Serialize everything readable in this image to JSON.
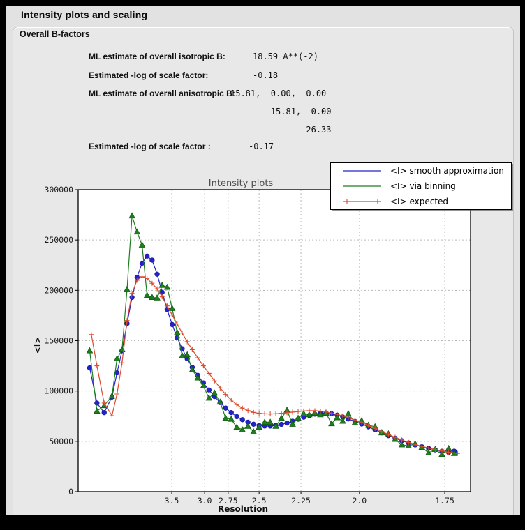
{
  "window": {
    "title": "Intensity plots and scaling"
  },
  "bfactors": {
    "heading": "Overall B-factors",
    "rows": [
      {
        "label": "ML estimate of overall isotropic B:",
        "value": "18.59 A**(-2)"
      },
      {
        "label": "Estimated -log of scale factor:",
        "value": "-0.18"
      },
      {
        "label": "ML estimate of overall anisotropic B:",
        "value": "15.81,  0.00,  0.00"
      },
      {
        "label": "",
        "value": "        15.81, -0.00"
      },
      {
        "label": "",
        "value": "               26.33"
      },
      {
        "label": "Estimated -log of scale factor :",
        "value": "-0.17"
      }
    ]
  },
  "chart_data": {
    "type": "line",
    "title": "Intensity plots",
    "xlabel": "Resolution",
    "ylabel": "<I>",
    "grid": true,
    "legend_position": "top-right",
    "x_axis": {
      "scale": "1/d^2 (d in Angstrom, reversed resolution axis)",
      "tick_d_values": [
        3.5,
        3.0,
        2.75,
        2.5,
        2.25,
        2.0,
        1.75
      ],
      "tick_labels": [
        "3.5",
        "3.0",
        "2.75",
        "2.5",
        "2.25",
        "2.0",
        "1.75"
      ],
      "xlim_s": [
        0,
        0.349
      ]
    },
    "y_axis": {
      "min": 0,
      "max": 300000,
      "tick_step": 50000,
      "tick_labels": [
        "0",
        "50000",
        "100000",
        "150000",
        "200000",
        "250000",
        "300000"
      ]
    },
    "series": [
      {
        "name": "<I> smooth approximation",
        "color": "#2323cc",
        "edge": "#15159e",
        "marker": "circle",
        "x": [
          0.008,
          0.0145,
          0.021,
          0.028,
          0.0325,
          0.037,
          0.0415,
          0.046,
          0.0505,
          0.055,
          0.0595,
          0.064,
          0.0685,
          0.073,
          0.0775,
          0.082,
          0.0865,
          0.091,
          0.0955,
          0.1,
          0.105,
          0.11,
          0.115,
          0.12,
          0.125,
          0.13,
          0.135,
          0.14,
          0.145,
          0.15,
          0.155,
          0.16,
          0.165,
          0.17,
          0.175,
          0.18,
          0.185,
          0.19,
          0.195,
          0.2,
          0.205,
          0.21,
          0.215,
          0.22,
          0.225,
          0.23,
          0.235,
          0.24,
          0.246,
          0.252,
          0.258,
          0.264,
          0.27,
          0.276,
          0.282,
          0.288,
          0.294,
          0.3,
          0.306,
          0.312,
          0.318,
          0.324,
          0.33,
          0.335
        ],
        "y": [
          123000,
          88000,
          78500,
          94000,
          118000,
          140000,
          167000,
          193000,
          213000,
          227000,
          234000,
          230000,
          216000,
          198000,
          181000,
          166000,
          153000,
          142000,
          132000,
          123500,
          115500,
          108000,
          101000,
          94500,
          88500,
          83000,
          78500,
          74500,
          71500,
          69000,
          67000,
          65800,
          65200,
          65200,
          65800,
          66800,
          68200,
          70000,
          72000,
          74000,
          75700,
          77000,
          77800,
          78000,
          77400,
          76000,
          74200,
          72200,
          69800,
          67200,
          64400,
          61400,
          58400,
          55600,
          53000,
          50600,
          48400,
          46400,
          44600,
          43000,
          41500,
          40100,
          39000,
          40200
        ]
      },
      {
        "name": "<I> via binning",
        "color": "#1e7d1e",
        "edge": "#0f5a0f",
        "marker": "triangle",
        "x": [
          0.008,
          0.0145,
          0.021,
          0.028,
          0.0325,
          0.037,
          0.0415,
          0.046,
          0.0505,
          0.055,
          0.0595,
          0.064,
          0.0685,
          0.073,
          0.0775,
          0.082,
          0.0865,
          0.091,
          0.0955,
          0.1,
          0.105,
          0.11,
          0.115,
          0.12,
          0.125,
          0.13,
          0.135,
          0.14,
          0.145,
          0.15,
          0.155,
          0.16,
          0.165,
          0.17,
          0.175,
          0.18,
          0.185,
          0.19,
          0.195,
          0.2,
          0.205,
          0.21,
          0.215,
          0.22,
          0.225,
          0.23,
          0.235,
          0.24,
          0.246,
          0.252,
          0.258,
          0.264,
          0.27,
          0.276,
          0.282,
          0.288,
          0.294,
          0.3,
          0.306,
          0.312,
          0.318,
          0.324,
          0.33,
          0.335
        ],
        "y": [
          140000,
          80000,
          85500,
          95000,
          132000,
          141000,
          201000,
          274000,
          258000,
          245000,
          195000,
          193000,
          192500,
          205000,
          203000,
          182000,
          158000,
          135000,
          136000,
          121000,
          113000,
          105000,
          93000,
          98000,
          89000,
          73000,
          72000,
          64000,
          61500,
          65000,
          59500,
          64000,
          69000,
          69000,
          65000,
          73000,
          81000,
          67000,
          73000,
          77500,
          76400,
          78000,
          76400,
          78000,
          67500,
          73500,
          70000,
          77500,
          68500,
          70500,
          66000,
          64500,
          58500,
          57500,
          52000,
          46500,
          45500,
          47500,
          44000,
          38500,
          42000,
          37000,
          43000,
          38000
        ]
      },
      {
        "name": "<I> expected",
        "color": "#dd4a2e",
        "edge": "#dd4a2e",
        "marker": "plus",
        "x": [
          0.0095,
          0.0145,
          0.021,
          0.028,
          0.0325,
          0.037,
          0.0415,
          0.046,
          0.0505,
          0.055,
          0.0595,
          0.064,
          0.0685,
          0.073,
          0.0775,
          0.082,
          0.0865,
          0.091,
          0.0955,
          0.1,
          0.105,
          0.11,
          0.115,
          0.12,
          0.125,
          0.13,
          0.135,
          0.14,
          0.145,
          0.15,
          0.155,
          0.16,
          0.165,
          0.17,
          0.175,
          0.18,
          0.185,
          0.19,
          0.195,
          0.2,
          0.205,
          0.21,
          0.215,
          0.22,
          0.225,
          0.23,
          0.235,
          0.24,
          0.246,
          0.252,
          0.258,
          0.264,
          0.27,
          0.276,
          0.282,
          0.288,
          0.294,
          0.3,
          0.306,
          0.312,
          0.318,
          0.324,
          0.33,
          0.338
        ],
        "y": [
          156000,
          125000,
          88000,
          75500,
          97000,
          128000,
          170000,
          197000,
          210000,
          213500,
          211500,
          207000,
          201500,
          193500,
          184500,
          175500,
          166500,
          157500,
          149000,
          141000,
          133000,
          125000,
          117500,
          110000,
          103000,
          96500,
          91000,
          86500,
          83000,
          80500,
          78800,
          77800,
          77300,
          77200,
          77400,
          77800,
          78400,
          79000,
          79600,
          80100,
          80400,
          80400,
          80000,
          79200,
          78000,
          76800,
          75300,
          73500,
          71200,
          68600,
          65800,
          62800,
          59800,
          56800,
          54000,
          51400,
          49000,
          46900,
          45000,
          43300,
          41800,
          40400,
          39200,
          38000
        ]
      }
    ]
  }
}
